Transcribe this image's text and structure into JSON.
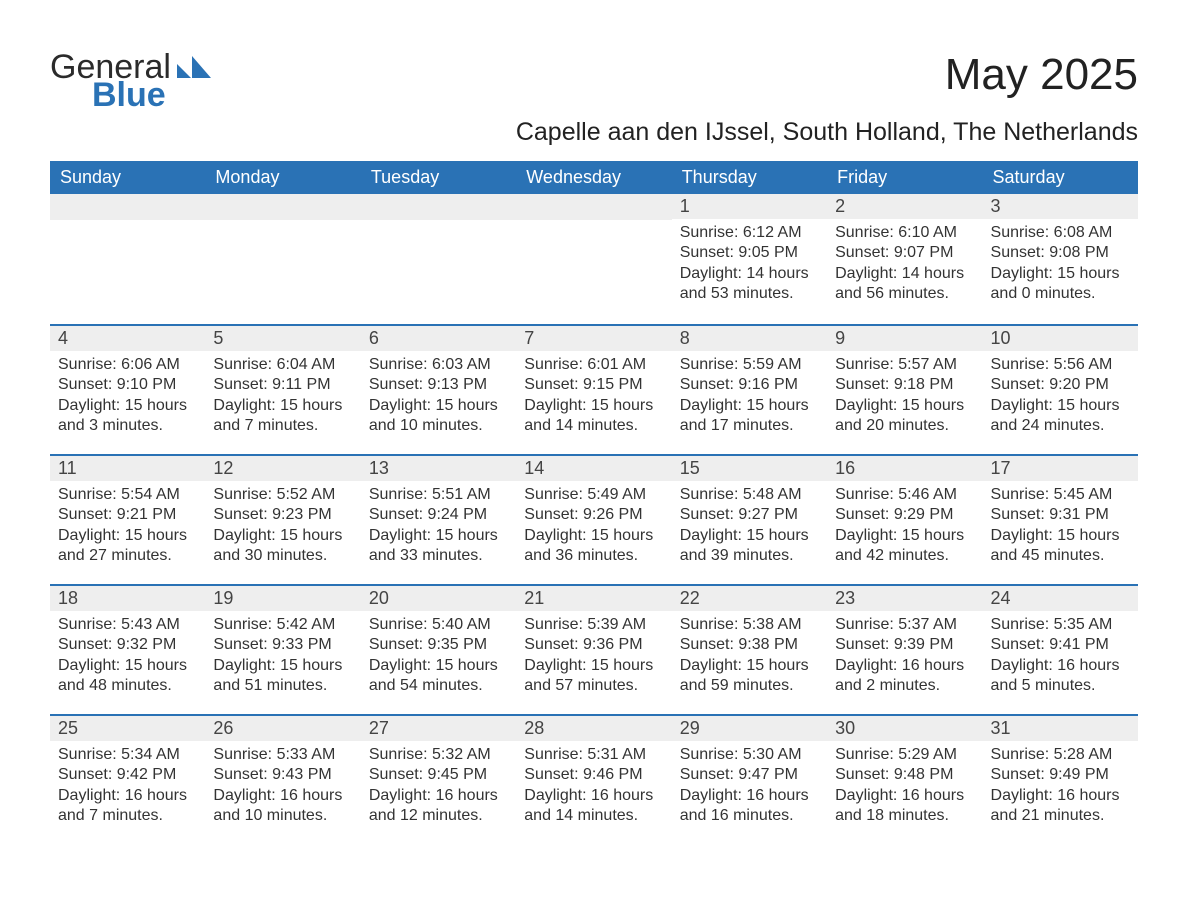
{
  "brand": {
    "word1": "General",
    "word2": "Blue",
    "accent_color": "#2a72b5"
  },
  "title": "May 2025",
  "location": "Capelle aan den IJssel, South Holland, The Netherlands",
  "header_bg": "#2a72b5",
  "header_text_color": "#ffffff",
  "day_bar_bg": "#eeeeee",
  "day_bar_border": "#2a72b5",
  "text_color": "#333333",
  "weekdays": [
    "Sunday",
    "Monday",
    "Tuesday",
    "Wednesday",
    "Thursday",
    "Friday",
    "Saturday"
  ],
  "weeks": [
    [
      null,
      null,
      null,
      null,
      {
        "n": "1",
        "sunrise": "6:12 AM",
        "sunset": "9:05 PM",
        "daylight": "14 hours and 53 minutes."
      },
      {
        "n": "2",
        "sunrise": "6:10 AM",
        "sunset": "9:07 PM",
        "daylight": "14 hours and 56 minutes."
      },
      {
        "n": "3",
        "sunrise": "6:08 AM",
        "sunset": "9:08 PM",
        "daylight": "15 hours and 0 minutes."
      }
    ],
    [
      {
        "n": "4",
        "sunrise": "6:06 AM",
        "sunset": "9:10 PM",
        "daylight": "15 hours and 3 minutes."
      },
      {
        "n": "5",
        "sunrise": "6:04 AM",
        "sunset": "9:11 PM",
        "daylight": "15 hours and 7 minutes."
      },
      {
        "n": "6",
        "sunrise": "6:03 AM",
        "sunset": "9:13 PM",
        "daylight": "15 hours and 10 minutes."
      },
      {
        "n": "7",
        "sunrise": "6:01 AM",
        "sunset": "9:15 PM",
        "daylight": "15 hours and 14 minutes."
      },
      {
        "n": "8",
        "sunrise": "5:59 AM",
        "sunset": "9:16 PM",
        "daylight": "15 hours and 17 minutes."
      },
      {
        "n": "9",
        "sunrise": "5:57 AM",
        "sunset": "9:18 PM",
        "daylight": "15 hours and 20 minutes."
      },
      {
        "n": "10",
        "sunrise": "5:56 AM",
        "sunset": "9:20 PM",
        "daylight": "15 hours and 24 minutes."
      }
    ],
    [
      {
        "n": "11",
        "sunrise": "5:54 AM",
        "sunset": "9:21 PM",
        "daylight": "15 hours and 27 minutes."
      },
      {
        "n": "12",
        "sunrise": "5:52 AM",
        "sunset": "9:23 PM",
        "daylight": "15 hours and 30 minutes."
      },
      {
        "n": "13",
        "sunrise": "5:51 AM",
        "sunset": "9:24 PM",
        "daylight": "15 hours and 33 minutes."
      },
      {
        "n": "14",
        "sunrise": "5:49 AM",
        "sunset": "9:26 PM",
        "daylight": "15 hours and 36 minutes."
      },
      {
        "n": "15",
        "sunrise": "5:48 AM",
        "sunset": "9:27 PM",
        "daylight": "15 hours and 39 minutes."
      },
      {
        "n": "16",
        "sunrise": "5:46 AM",
        "sunset": "9:29 PM",
        "daylight": "15 hours and 42 minutes."
      },
      {
        "n": "17",
        "sunrise": "5:45 AM",
        "sunset": "9:31 PM",
        "daylight": "15 hours and 45 minutes."
      }
    ],
    [
      {
        "n": "18",
        "sunrise": "5:43 AM",
        "sunset": "9:32 PM",
        "daylight": "15 hours and 48 minutes."
      },
      {
        "n": "19",
        "sunrise": "5:42 AM",
        "sunset": "9:33 PM",
        "daylight": "15 hours and 51 minutes."
      },
      {
        "n": "20",
        "sunrise": "5:40 AM",
        "sunset": "9:35 PM",
        "daylight": "15 hours and 54 minutes."
      },
      {
        "n": "21",
        "sunrise": "5:39 AM",
        "sunset": "9:36 PM",
        "daylight": "15 hours and 57 minutes."
      },
      {
        "n": "22",
        "sunrise": "5:38 AM",
        "sunset": "9:38 PM",
        "daylight": "15 hours and 59 minutes."
      },
      {
        "n": "23",
        "sunrise": "5:37 AM",
        "sunset": "9:39 PM",
        "daylight": "16 hours and 2 minutes."
      },
      {
        "n": "24",
        "sunrise": "5:35 AM",
        "sunset": "9:41 PM",
        "daylight": "16 hours and 5 minutes."
      }
    ],
    [
      {
        "n": "25",
        "sunrise": "5:34 AM",
        "sunset": "9:42 PM",
        "daylight": "16 hours and 7 minutes."
      },
      {
        "n": "26",
        "sunrise": "5:33 AM",
        "sunset": "9:43 PM",
        "daylight": "16 hours and 10 minutes."
      },
      {
        "n": "27",
        "sunrise": "5:32 AM",
        "sunset": "9:45 PM",
        "daylight": "16 hours and 12 minutes."
      },
      {
        "n": "28",
        "sunrise": "5:31 AM",
        "sunset": "9:46 PM",
        "daylight": "16 hours and 14 minutes."
      },
      {
        "n": "29",
        "sunrise": "5:30 AM",
        "sunset": "9:47 PM",
        "daylight": "16 hours and 16 minutes."
      },
      {
        "n": "30",
        "sunrise": "5:29 AM",
        "sunset": "9:48 PM",
        "daylight": "16 hours and 18 minutes."
      },
      {
        "n": "31",
        "sunrise": "5:28 AM",
        "sunset": "9:49 PM",
        "daylight": "16 hours and 21 minutes."
      }
    ]
  ],
  "labels": {
    "sunrise": "Sunrise: ",
    "sunset": "Sunset: ",
    "daylight": "Daylight: "
  }
}
